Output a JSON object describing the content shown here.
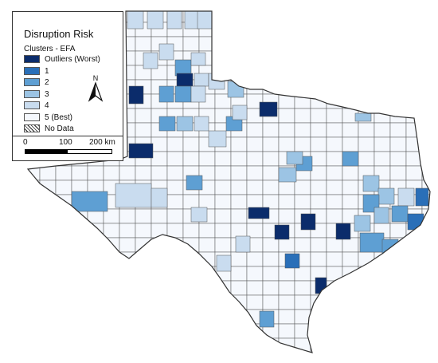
{
  "legend": {
    "title": "Disruption Risk",
    "subtitle": "Clusters - EFA",
    "items": [
      {
        "label": "Outliers (Worst)",
        "color": "#0b2c6b"
      },
      {
        "label": "1",
        "color": "#2a6fb8"
      },
      {
        "label": "2",
        "color": "#5e9fd3"
      },
      {
        "label": "3",
        "color": "#9cc4e4"
      },
      {
        "label": "4",
        "color": "#c9dcef"
      },
      {
        "label": "5 (Best)",
        "color": "#f5f8fd"
      },
      {
        "label": "No Data",
        "color": "hatched"
      }
    ]
  },
  "scale": {
    "labels": [
      "0",
      "100",
      "200 km"
    ]
  },
  "colors": {
    "outline": "#333333"
  }
}
